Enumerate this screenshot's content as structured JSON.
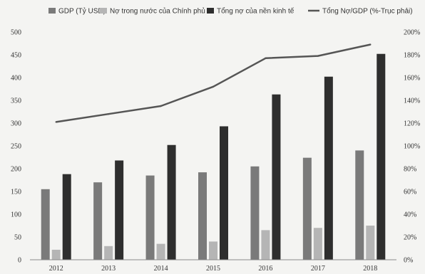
{
  "chart_data": {
    "type": "bar",
    "categories": [
      "2012",
      "2013",
      "2014",
      "2015",
      "2016",
      "2017",
      "2018"
    ],
    "series": [
      {
        "name": "GDP (Tỷ USD)",
        "kind": "bar",
        "axis": "left",
        "color": "#7a7a7a",
        "values": [
          155,
          170,
          185,
          192,
          205,
          224,
          240
        ]
      },
      {
        "name": "Nợ trong nước của Chính phủ",
        "kind": "bar",
        "axis": "left",
        "color": "#b5b5b5",
        "values": [
          22,
          30,
          35,
          40,
          65,
          70,
          75
        ]
      },
      {
        "name": "Tổng nợ của nền kinh tế",
        "kind": "bar",
        "axis": "left",
        "color": "#2e2e2e",
        "values": [
          188,
          218,
          252,
          293,
          363,
          402,
          452
        ]
      },
      {
        "name": "Tổng Nợ/GDP (%-Trục phải)",
        "kind": "line",
        "axis": "right",
        "color": "#555555",
        "values": [
          121,
          128,
          135,
          152,
          177,
          179,
          189
        ]
      }
    ],
    "yleft": {
      "min": 0,
      "max": 500,
      "step": 50
    },
    "yright": {
      "min": 0,
      "max": 200,
      "step": 20,
      "unit": "%"
    },
    "legend_position": "top",
    "grid": false
  }
}
